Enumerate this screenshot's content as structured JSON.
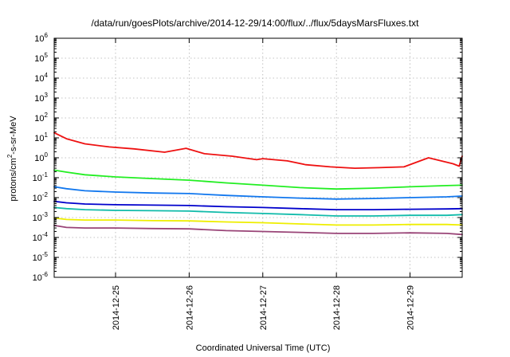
{
  "chart_data": {
    "type": "line",
    "title": "/data/run/goesPlots/archive/2014-12-29/14:00/flux/../flux/5daysMarsFluxes.txt",
    "xlabel": "Coordinated Universal Time (UTC)",
    "ylabel_parts": [
      "protons/cm",
      "2",
      "-s-sr-MeV"
    ],
    "y_scale": "log",
    "ylim": [
      1e-06,
      1000000.0
    ],
    "y_ticks": [
      {
        "base": "10",
        "exp": "-6",
        "value": 1e-06
      },
      {
        "base": "10",
        "exp": "-5",
        "value": 1e-05
      },
      {
        "base": "10",
        "exp": "-4",
        "value": 0.0001
      },
      {
        "base": "10",
        "exp": "-3",
        "value": 0.001
      },
      {
        "base": "10",
        "exp": "-2",
        "value": 0.01
      },
      {
        "base": "10",
        "exp": "-1",
        "value": 0.1
      },
      {
        "base": "10",
        "exp": "0",
        "value": 1
      },
      {
        "base": "10",
        "exp": "1",
        "value": 10
      },
      {
        "base": "10",
        "exp": "2",
        "value": 100
      },
      {
        "base": "10",
        "exp": "3",
        "value": 1000
      },
      {
        "base": "10",
        "exp": "4",
        "value": 10000
      },
      {
        "base": "10",
        "exp": "5",
        "value": 100000
      },
      {
        "base": "10",
        "exp": "6",
        "value": 1000000
      }
    ],
    "xlim": [
      "2014-12-24 04:00",
      "2014-12-29 17:00"
    ],
    "x_ticks": [
      {
        "label": "2014-12-25",
        "value": "2014-12-25 00:00"
      },
      {
        "label": "2014-12-26",
        "value": "2014-12-26 00:00"
      },
      {
        "label": "2014-12-27",
        "value": "2014-12-27 00:00"
      },
      {
        "label": "2014-12-28",
        "value": "2014-12-28 00:00"
      },
      {
        "label": "2014-12-29",
        "value": "2014-12-29 00:00"
      }
    ],
    "grid": true,
    "legend": "none",
    "series": [
      {
        "color": "#ee1111",
        "x": [
          "2014-12-24 04:00",
          "2014-12-24 08:00",
          "2014-12-24 14:00",
          "2014-12-24 22:00",
          "2014-12-25 06:00",
          "2014-12-25 16:00",
          "2014-12-25 23:00",
          "2014-12-26 05:00",
          "2014-12-26 14:00",
          "2014-12-26 22:00",
          "2014-12-27 00:00",
          "2014-12-27 08:00",
          "2014-12-27 14:00",
          "2014-12-27 22:00",
          "2014-12-28 06:00",
          "2014-12-28 14:00",
          "2014-12-28 22:00",
          "2014-12-29 06:00",
          "2014-12-29 14:00",
          "2014-12-29 16:00",
          "2014-12-29 17:00"
        ],
        "y": [
          18,
          9,
          5,
          3.5,
          2.8,
          1.9,
          3,
          1.6,
          1.2,
          0.8,
          0.9,
          0.7,
          0.45,
          0.35,
          0.3,
          0.32,
          0.35,
          1.0,
          0.5,
          0.38,
          1.2
        ]
      },
      {
        "color": "#22ee22",
        "x": [
          "2014-12-24 04:00",
          "2014-12-24 08:00",
          "2014-12-24 14:00",
          "2014-12-25 00:00",
          "2014-12-25 12:00",
          "2014-12-26 00:00",
          "2014-12-26 12:00",
          "2014-12-27 00:00",
          "2014-12-27 12:00",
          "2014-12-28 00:00",
          "2014-12-28 12:00",
          "2014-12-29 00:00",
          "2014-12-29 12:00",
          "2014-12-29 17:00"
        ],
        "y": [
          0.24,
          0.19,
          0.14,
          0.11,
          0.09,
          0.075,
          0.055,
          0.042,
          0.032,
          0.027,
          0.03,
          0.035,
          0.04,
          0.042
        ]
      },
      {
        "color": "#1177ee",
        "x": [
          "2014-12-24 04:00",
          "2014-12-24 08:00",
          "2014-12-24 14:00",
          "2014-12-25 00:00",
          "2014-12-25 12:00",
          "2014-12-26 00:00",
          "2014-12-26 12:00",
          "2014-12-27 00:00",
          "2014-12-27 12:00",
          "2014-12-28 00:00",
          "2014-12-28 12:00",
          "2014-12-29 00:00",
          "2014-12-29 12:00",
          "2014-12-29 17:00"
        ],
        "y": [
          0.035,
          0.028,
          0.022,
          0.019,
          0.017,
          0.016,
          0.013,
          0.011,
          0.0095,
          0.0085,
          0.009,
          0.01,
          0.011,
          0.012
        ]
      },
      {
        "color": "#0000cc",
        "x": [
          "2014-12-24 04:00",
          "2014-12-24 08:00",
          "2014-12-24 14:00",
          "2014-12-25 00:00",
          "2014-12-25 12:00",
          "2014-12-26 00:00",
          "2014-12-26 12:00",
          "2014-12-27 00:00",
          "2014-12-27 12:00",
          "2014-12-28 00:00",
          "2014-12-28 12:00",
          "2014-12-29 00:00",
          "2014-12-29 12:00",
          "2014-12-29 17:00"
        ],
        "y": [
          0.0065,
          0.0055,
          0.0048,
          0.0044,
          0.0042,
          0.004,
          0.0035,
          0.0032,
          0.0028,
          0.0025,
          0.0025,
          0.0026,
          0.0027,
          0.0028
        ]
      },
      {
        "color": "#11bbaa",
        "x": [
          "2014-12-24 04:00",
          "2014-12-24 08:00",
          "2014-12-24 14:00",
          "2014-12-25 00:00",
          "2014-12-25 12:00",
          "2014-12-26 00:00",
          "2014-12-26 12:00",
          "2014-12-27 00:00",
          "2014-12-27 12:00",
          "2014-12-28 00:00",
          "2014-12-28 12:00",
          "2014-12-29 00:00",
          "2014-12-29 12:00",
          "2014-12-29 17:00"
        ],
        "y": [
          0.0032,
          0.0028,
          0.0025,
          0.0023,
          0.0022,
          0.0021,
          0.0018,
          0.0016,
          0.0014,
          0.0012,
          0.0012,
          0.0013,
          0.0013,
          0.0014
        ]
      },
      {
        "color": "#eeee00",
        "x": [
          "2014-12-24 04:00",
          "2014-12-24 08:00",
          "2014-12-24 14:00",
          "2014-12-25 00:00",
          "2014-12-25 12:00",
          "2014-12-26 00:00",
          "2014-12-26 12:00",
          "2014-12-27 00:00",
          "2014-12-27 12:00",
          "2014-12-28 00:00",
          "2014-12-28 12:00",
          "2014-12-29 00:00",
          "2014-12-29 12:00",
          "2014-12-29 17:00"
        ],
        "y": [
          0.00095,
          0.0008,
          0.00075,
          0.00075,
          0.0007,
          0.00068,
          0.0006,
          0.00055,
          0.00048,
          0.00042,
          0.00042,
          0.00045,
          0.00045,
          0.00042
        ]
      },
      {
        "color": "#994477",
        "x": [
          "2014-12-24 04:00",
          "2014-12-24 08:00",
          "2014-12-24 14:00",
          "2014-12-25 00:00",
          "2014-12-25 12:00",
          "2014-12-26 00:00",
          "2014-12-26 12:00",
          "2014-12-27 00:00",
          "2014-12-27 12:00",
          "2014-12-28 00:00",
          "2014-12-28 12:00",
          "2014-12-29 00:00",
          "2014-12-29 12:00",
          "2014-12-29 17:00"
        ],
        "y": [
          0.0004,
          0.00032,
          0.0003,
          0.0003,
          0.00028,
          0.00027,
          0.00022,
          0.0002,
          0.00018,
          0.00016,
          0.00016,
          0.00017,
          0.00016,
          0.00014
        ]
      }
    ]
  }
}
